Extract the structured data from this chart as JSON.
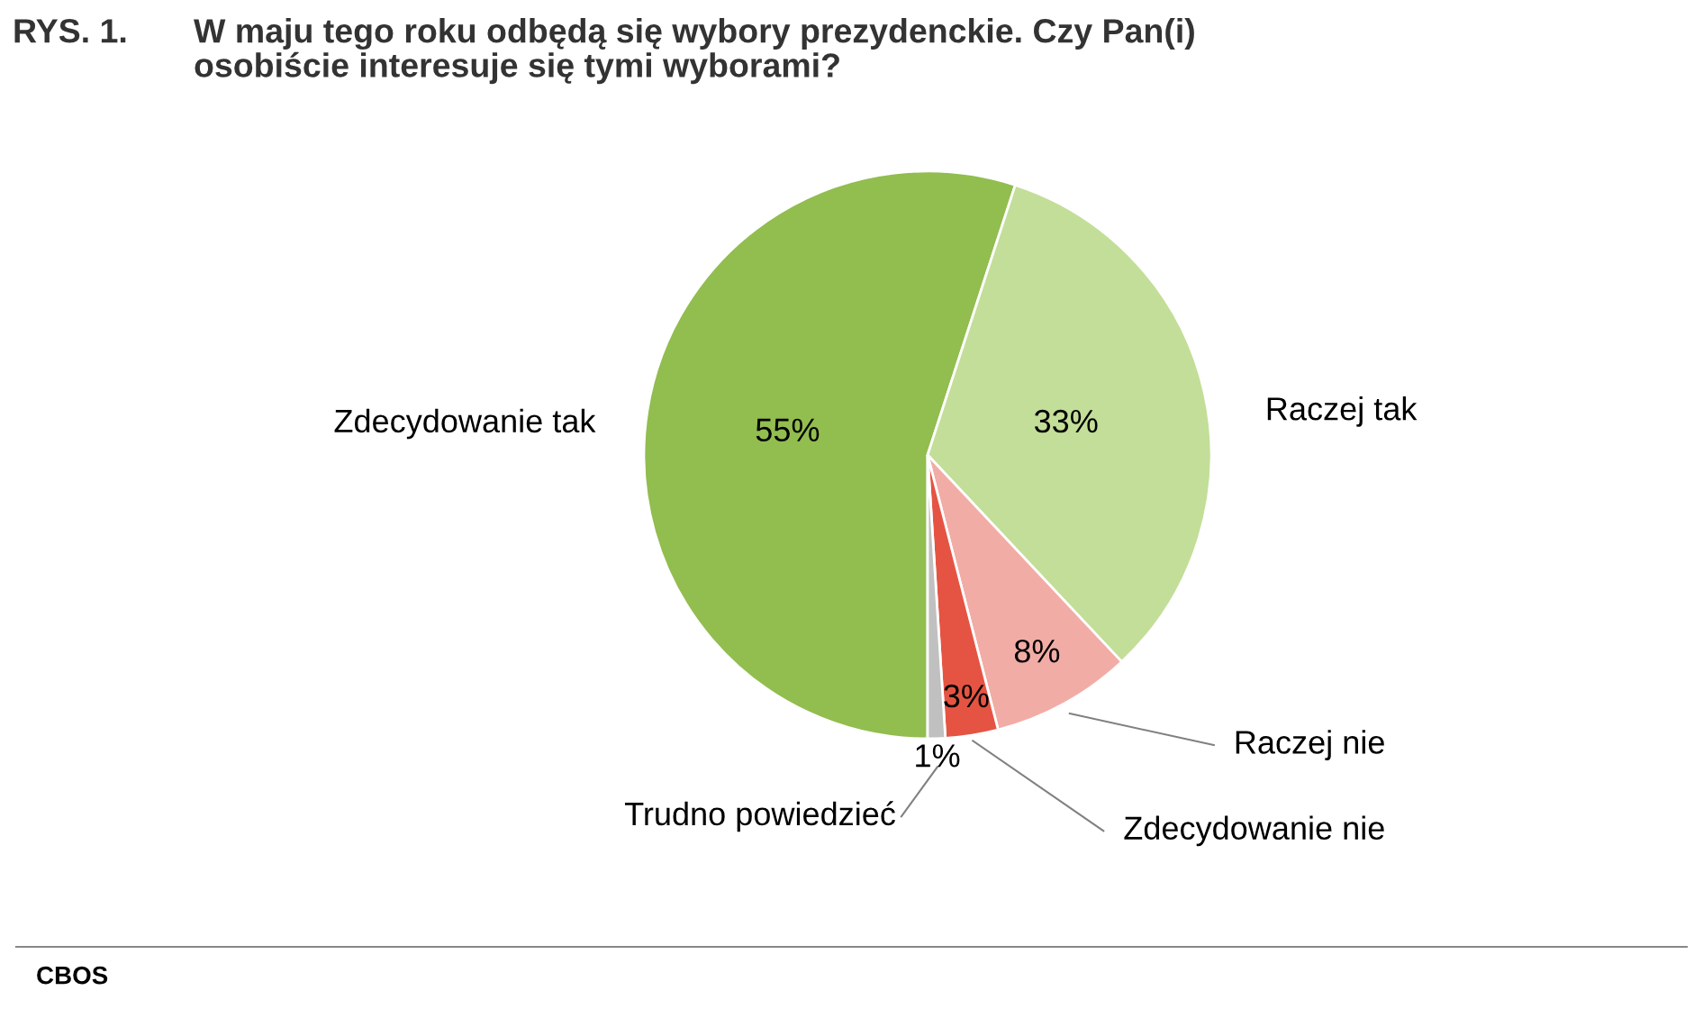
{
  "chart_data": {
    "type": "pie",
    "title": "W maju tego roku odbędą się wybory prezydenckie. Czy Pan(i)\nosobiście interesuje się tymi wyborami?",
    "categories": [
      "Zdecydowanie tak",
      "Raczej tak",
      "Raczej nie",
      "Zdecydowanie nie",
      "Trudno powiedzieć"
    ],
    "values": [
      55,
      33,
      8,
      3,
      1
    ],
    "value_labels": [
      "55%",
      "33%",
      "8%",
      "3%",
      "1%"
    ],
    "colors": [
      "#92bd4f",
      "#c3de98",
      "#f2aca6",
      "#e55443",
      "#c0c0c0"
    ],
    "annotations": [
      "RYS. 1.",
      "CBOS"
    ]
  }
}
